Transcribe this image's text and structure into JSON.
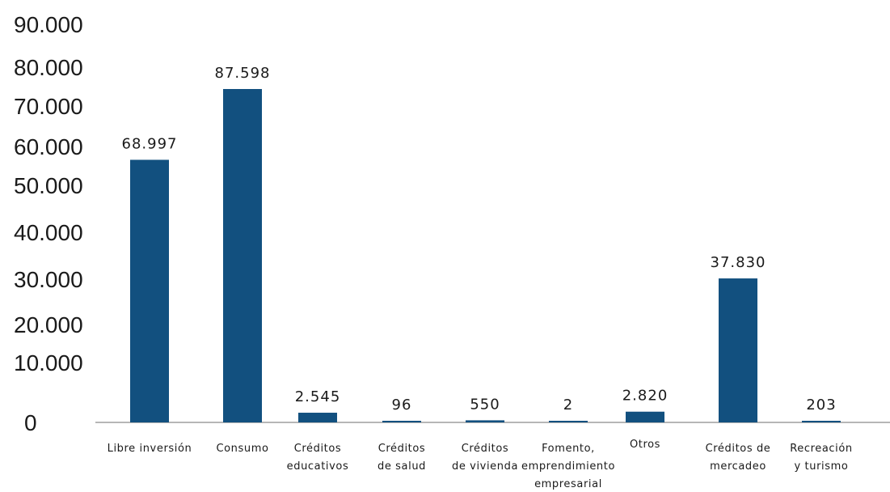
{
  "chart_data": {
    "type": "bar",
    "categories": [
      [
        "Libre inversión"
      ],
      [
        "Consumo"
      ],
      [
        "Créditos",
        "educativos"
      ],
      [
        "Créditos",
        "de salud"
      ],
      [
        "Créditos",
        "de vivienda"
      ],
      [
        "Fomento,",
        "emprendimiento",
        "empresarial"
      ],
      [
        "Otros"
      ],
      [
        "Créditos de",
        "mercadeo"
      ],
      [
        "Recreación",
        "y turismo"
      ]
    ],
    "values": [
      68997,
      87598,
      2545,
      96,
      550,
      2,
      2820,
      37830,
      203
    ],
    "value_labels": [
      "68.997",
      "87.598",
      "2.545",
      "96",
      "550",
      "2",
      "2.820",
      "37.830",
      "203"
    ],
    "y_ticks": [
      "0",
      "10.000",
      "20.000",
      "30.000",
      "40.000",
      "50.000",
      "60.000",
      "70.000",
      "80.000",
      "90.000"
    ],
    "ylim": [
      0,
      90000
    ],
    "grid": false,
    "legend": "none",
    "bar_color": "#12507f",
    "title": "",
    "xlabel": "",
    "ylabel": ""
  }
}
